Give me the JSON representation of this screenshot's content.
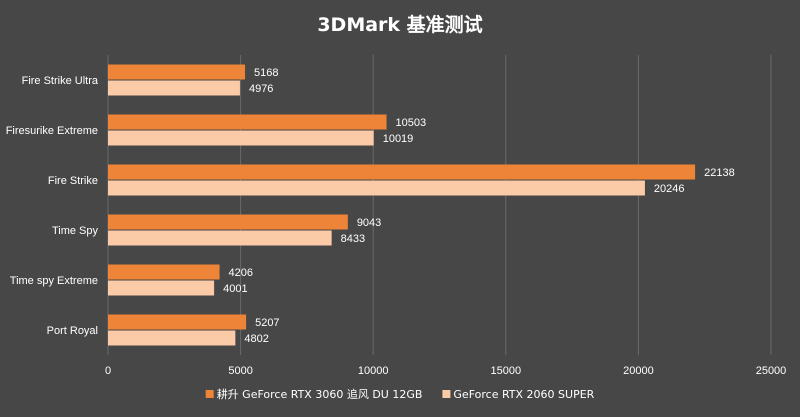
{
  "chart_data": {
    "type": "bar",
    "orientation": "horizontal",
    "title": "3DMark 基准测试",
    "categories": [
      "Fire Strike Ultra",
      "Firesurike Extreme",
      "Fire Strike",
      "Time Spy",
      "Time spy Extreme",
      "Port Royal"
    ],
    "series": [
      {
        "name": "耕升 GeForce RTX 3060 追风 DU 12GB",
        "color": "#ee8438",
        "values": [
          5168,
          10503,
          22138,
          9043,
          4206,
          5207
        ]
      },
      {
        "name": "GeForce  RTX 2060 SUPER",
        "color": "#fbcaa6",
        "values": [
          4976,
          10019,
          20246,
          8433,
          4001,
          4802
        ]
      }
    ],
    "xlim": [
      0,
      25000
    ],
    "xticks": [
      0,
      5000,
      10000,
      15000,
      20000,
      25000
    ],
    "grid": true,
    "legend_position": "bottom",
    "background": "#474747"
  }
}
